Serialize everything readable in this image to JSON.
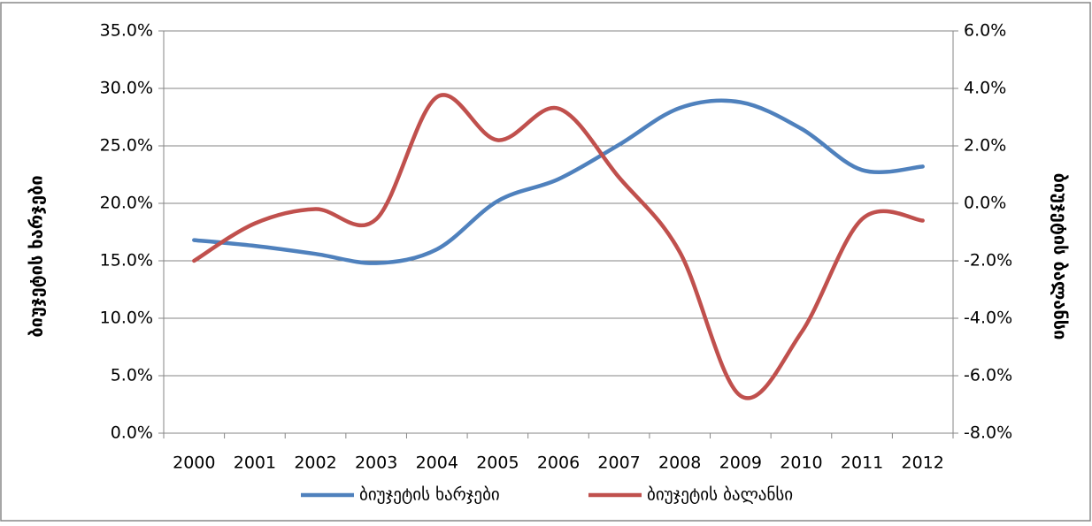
{
  "chart_data": {
    "type": "line",
    "categories": [
      "2000",
      "2001",
      "2002",
      "2003",
      "2004",
      "2005",
      "2006",
      "2007",
      "2008",
      "2009",
      "2010",
      "2011",
      "2012"
    ],
    "series": [
      {
        "name": "ბიუჯეტის ხარჯები",
        "color": "#4f81bd",
        "axis": "y",
        "values": [
          16.8,
          16.3,
          15.6,
          14.8,
          16.0,
          20.2,
          22.1,
          25.1,
          28.3,
          28.8,
          26.5,
          22.9,
          23.2
        ]
      },
      {
        "name": "ბიუჯეტის ბალანსი",
        "color": "#c0504d",
        "axis": "y2",
        "values": [
          -2.0,
          -0.7,
          -0.2,
          -0.55,
          3.7,
          2.2,
          3.3,
          0.9,
          -1.7,
          -6.7,
          -4.5,
          -0.55,
          -0.6
        ]
      }
    ],
    "ylabel": "ბიუჯეტის ხარჯები",
    "y2label": "ბიუჯეტის ბალანსი",
    "ylim": [
      0,
      35
    ],
    "yticks": [
      {
        "value": 0,
        "label": "0.0%"
      },
      {
        "value": 5,
        "label": "5.0%"
      },
      {
        "value": 10,
        "label": "10.0%"
      },
      {
        "value": 15,
        "label": "15.0%"
      },
      {
        "value": 20,
        "label": "20.0%"
      },
      {
        "value": 25,
        "label": "25.0%"
      },
      {
        "value": 30,
        "label": "30.0%"
      },
      {
        "value": 35,
        "label": "35.0%"
      }
    ],
    "y2lim": [
      -8,
      6
    ],
    "y2ticks": [
      {
        "value": -8,
        "label": "-8.0%"
      },
      {
        "value": -6,
        "label": "-6.0%"
      },
      {
        "value": -4,
        "label": "-4.0%"
      },
      {
        "value": -2,
        "label": "-2.0%"
      },
      {
        "value": 0,
        "label": "0.0%"
      },
      {
        "value": 2,
        "label": "2.0%"
      },
      {
        "value": 4,
        "label": "4.0%"
      },
      {
        "value": 6,
        "label": "6.0%"
      }
    ],
    "grid": true,
    "legend": "bottom"
  }
}
